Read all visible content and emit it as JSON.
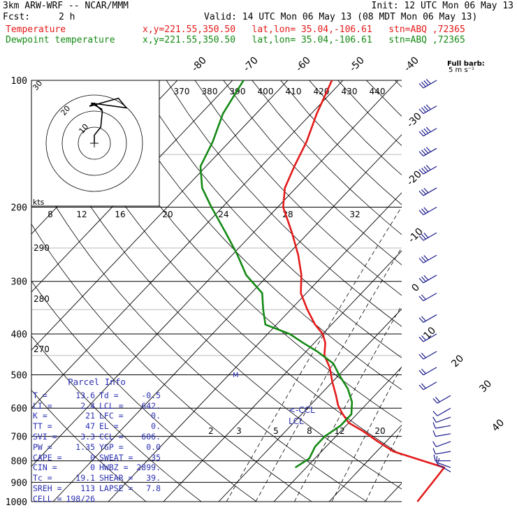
{
  "header": {
    "model": "3km ARW-WRF -- NCAR/MMM",
    "init": "Init: 12 UTC Mon 06 May 13",
    "fcst_label": "Fcst:",
    "fcst_value": "2 h",
    "valid": "Valid: 14 UTC Mon 06 May 13 (08 MDT Mon 06 May 13)",
    "temp_label": "Temperature",
    "dew_label": "Dewpoint temperature",
    "temp_loc": "x,y=221.55,350.50   lat,lon= 35.04,-106.61   stn=ABQ ,72365",
    "dew_loc": "x,y=221.55,350.50   lat,lon= 35.04,-106.61   stn=ABQ ,72365"
  },
  "colors": {
    "temperature": "#e41a1a",
    "dewpoint": "#148a14",
    "parcel": "#2a2fb0",
    "wind": "#1a1a8c"
  },
  "wind_legend": {
    "title": "Full barb:",
    "value": "5 m s⁻¹"
  },
  "hodograph": {
    "unit": "kts",
    "ring_labels": [
      "10",
      "20",
      "30"
    ]
  },
  "parcel_info": {
    "title": "Parcel Info",
    "rows": [
      [
        "T",
        "=",
        "13.6",
        "Td",
        "=",
        "-0.5"
      ],
      [
        "LI",
        "=",
        "2.4",
        "LCL",
        "=",
        "642."
      ],
      [
        "K",
        "=",
        "21",
        "LFC",
        "=",
        "0."
      ],
      [
        "TT",
        "=",
        "47",
        "EL",
        "=",
        "0."
      ],
      [
        "SVI",
        "=",
        "3.3",
        "CCL",
        "=",
        "606."
      ],
      [
        "PW",
        "=",
        "1.35",
        "YGP",
        "=",
        "0.0"
      ],
      [
        "CAPE",
        "=",
        "0",
        "SWEAT",
        "=",
        "35"
      ],
      [
        "CIN",
        "=",
        "0",
        "HWBZ",
        "=",
        "2899."
      ],
      [
        "Tc",
        "=",
        "19.1",
        "SHEAR",
        "=",
        "39."
      ],
      [
        "SREH",
        "=",
        "113",
        "LAPSE",
        "=",
        "7.8"
      ],
      [
        "CELL",
        "=",
        "198/26",
        "",
        "",
        ""
      ]
    ]
  },
  "chart_data": {
    "type": "line",
    "pressure_ticks": [
      100,
      200,
      300,
      400,
      500,
      600,
      700,
      800,
      900,
      1000
    ],
    "isotherm_labels": [
      "-80",
      "-70",
      "-60",
      "-50",
      "-40",
      "-30",
      "-20",
      "-10",
      "0",
      "10",
      "20",
      "30",
      "40"
    ],
    "theta_e_labels": [
      "370",
      "380",
      "390",
      "400",
      "410",
      "420",
      "430",
      "440"
    ],
    "dry_adiabat_labels": [
      "290",
      "280",
      "270"
    ],
    "mixing_ratio_labels_top": [
      "8",
      "12",
      "16",
      "20",
      "24",
      "28",
      "32"
    ],
    "mixing_ratio_labels_bottom": [
      "2",
      "3",
      "5",
      "8",
      "12",
      "20"
    ],
    "lcl_labels": [
      "<-CCL",
      "LCL"
    ],
    "tropopause_mark": "M",
    "series": [
      {
        "name": "Temperature",
        "points": [
          [
            1000,
            26
          ],
          [
            830,
            25
          ],
          [
            800,
            20
          ],
          [
            760,
            13
          ],
          [
            720,
            8.5
          ],
          [
            680,
            4
          ],
          [
            650,
            0
          ],
          [
            615,
            -3
          ],
          [
            590,
            -5
          ],
          [
            560,
            -7
          ],
          [
            520,
            -10
          ],
          [
            480,
            -13
          ],
          [
            450,
            -16
          ],
          [
            420,
            -18
          ],
          [
            400,
            -20
          ],
          [
            380,
            -23
          ],
          [
            350,
            -27
          ],
          [
            320,
            -31
          ],
          [
            290,
            -34
          ],
          [
            260,
            -38
          ],
          [
            230,
            -43
          ],
          [
            200,
            -49
          ],
          [
            180,
            -52
          ],
          [
            160,
            -54
          ],
          [
            140,
            -56
          ],
          [
            120,
            -59
          ],
          [
            100,
            -62
          ]
        ]
      },
      {
        "name": "Dewpoint temperature",
        "points": [
          [
            830,
            -2
          ],
          [
            790,
            -1
          ],
          [
            740,
            -2
          ],
          [
            700,
            -2
          ],
          [
            660,
            -1
          ],
          [
            620,
            -1
          ],
          [
            580,
            -3
          ],
          [
            540,
            -6
          ],
          [
            500,
            -10
          ],
          [
            470,
            -13
          ],
          [
            440,
            -18
          ],
          [
            420,
            -22
          ],
          [
            400,
            -26
          ],
          [
            380,
            -32
          ],
          [
            350,
            -35
          ],
          [
            320,
            -38
          ],
          [
            290,
            -44
          ],
          [
            260,
            -49
          ],
          [
            230,
            -55
          ],
          [
            200,
            -62
          ],
          [
            180,
            -67
          ],
          [
            160,
            -71
          ],
          [
            140,
            -73
          ],
          [
            120,
            -76
          ],
          [
            100,
            -78
          ]
        ]
      }
    ],
    "hodograph": [
      [
        0,
        0
      ],
      [
        0,
        5
      ],
      [
        4,
        10
      ],
      [
        5,
        20
      ],
      [
        0,
        25
      ],
      [
        -3,
        23
      ],
      [
        15,
        28
      ],
      [
        20,
        22
      ],
      [
        -2,
        25
      ],
      [
        5,
        21
      ]
    ],
    "wind_barbs": [
      {
        "p": 850,
        "dir": 300,
        "spd": 5
      },
      {
        "p": 830,
        "dir": 290,
        "spd": 7
      },
      {
        "p": 800,
        "dir": 270,
        "spd": 6
      },
      {
        "p": 760,
        "dir": 260,
        "spd": 5
      },
      {
        "p": 720,
        "dir": 250,
        "spd": 5
      },
      {
        "p": 690,
        "dir": 260,
        "spd": 5
      },
      {
        "p": 660,
        "dir": 260,
        "spd": 5
      },
      {
        "p": 630,
        "dir": 250,
        "spd": 6
      },
      {
        "p": 600,
        "dir": 240,
        "spd": 6
      },
      {
        "p": 560,
        "dir": 240,
        "spd": 8
      },
      {
        "p": 520,
        "dir": 240,
        "spd": 8
      },
      {
        "p": 480,
        "dir": 240,
        "spd": 9
      },
      {
        "p": 440,
        "dir": 240,
        "spd": 10
      },
      {
        "p": 400,
        "dir": 240,
        "spd": 10
      },
      {
        "p": 360,
        "dir": 240,
        "spd": 12
      },
      {
        "p": 320,
        "dir": 240,
        "spd": 12
      },
      {
        "p": 290,
        "dir": 240,
        "spd": 14
      },
      {
        "p": 260,
        "dir": 240,
        "spd": 14
      },
      {
        "p": 230,
        "dir": 240,
        "spd": 16
      },
      {
        "p": 200,
        "dir": 240,
        "spd": 16
      },
      {
        "p": 180,
        "dir": 240,
        "spd": 16
      },
      {
        "p": 160,
        "dir": 240,
        "spd": 18
      },
      {
        "p": 145,
        "dir": 240,
        "spd": 18
      },
      {
        "p": 130,
        "dir": 240,
        "spd": 18
      },
      {
        "p": 115,
        "dir": 240,
        "spd": 18
      },
      {
        "p": 100,
        "dir": 240,
        "spd": 20
      }
    ]
  }
}
